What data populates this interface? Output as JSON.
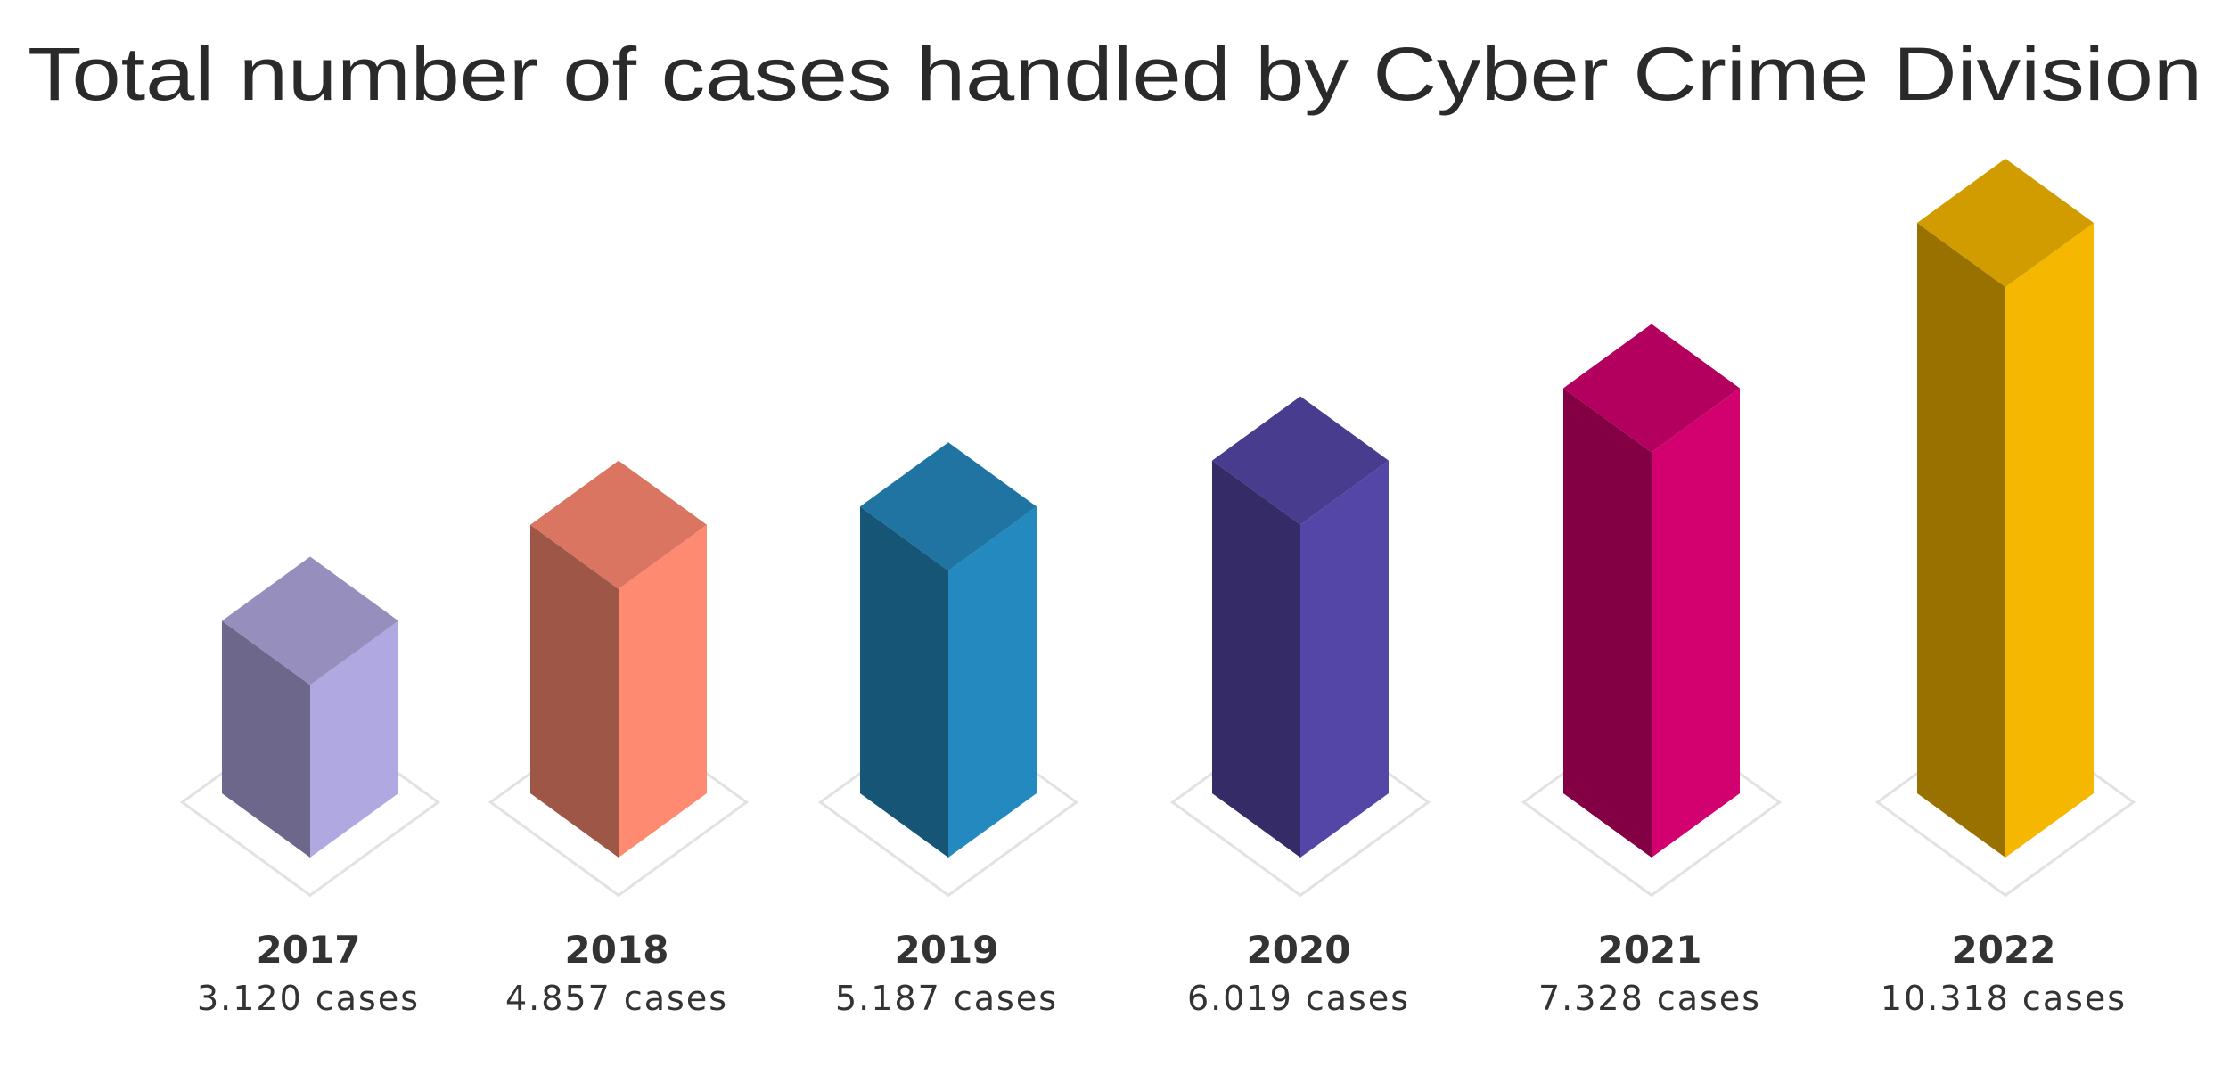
{
  "chart_data": {
    "type": "bar",
    "title": "Total number of cases handled by Cyber Crime Division",
    "categories": [
      "2017",
      "2018",
      "2019",
      "2020",
      "2021",
      "2022"
    ],
    "values": [
      3120,
      4857,
      5187,
      6019,
      7328,
      10318
    ],
    "value_labels": [
      "3.120 cases",
      "4.857 cases",
      "5.187 cases",
      "6.019 cases",
      "7.328 cases",
      "10.318 cases"
    ],
    "colors": [
      "#b0a8e0",
      "#ff8a72",
      "#2489be",
      "#5446a6",
      "#d3006f",
      "#f5b700"
    ]
  }
}
